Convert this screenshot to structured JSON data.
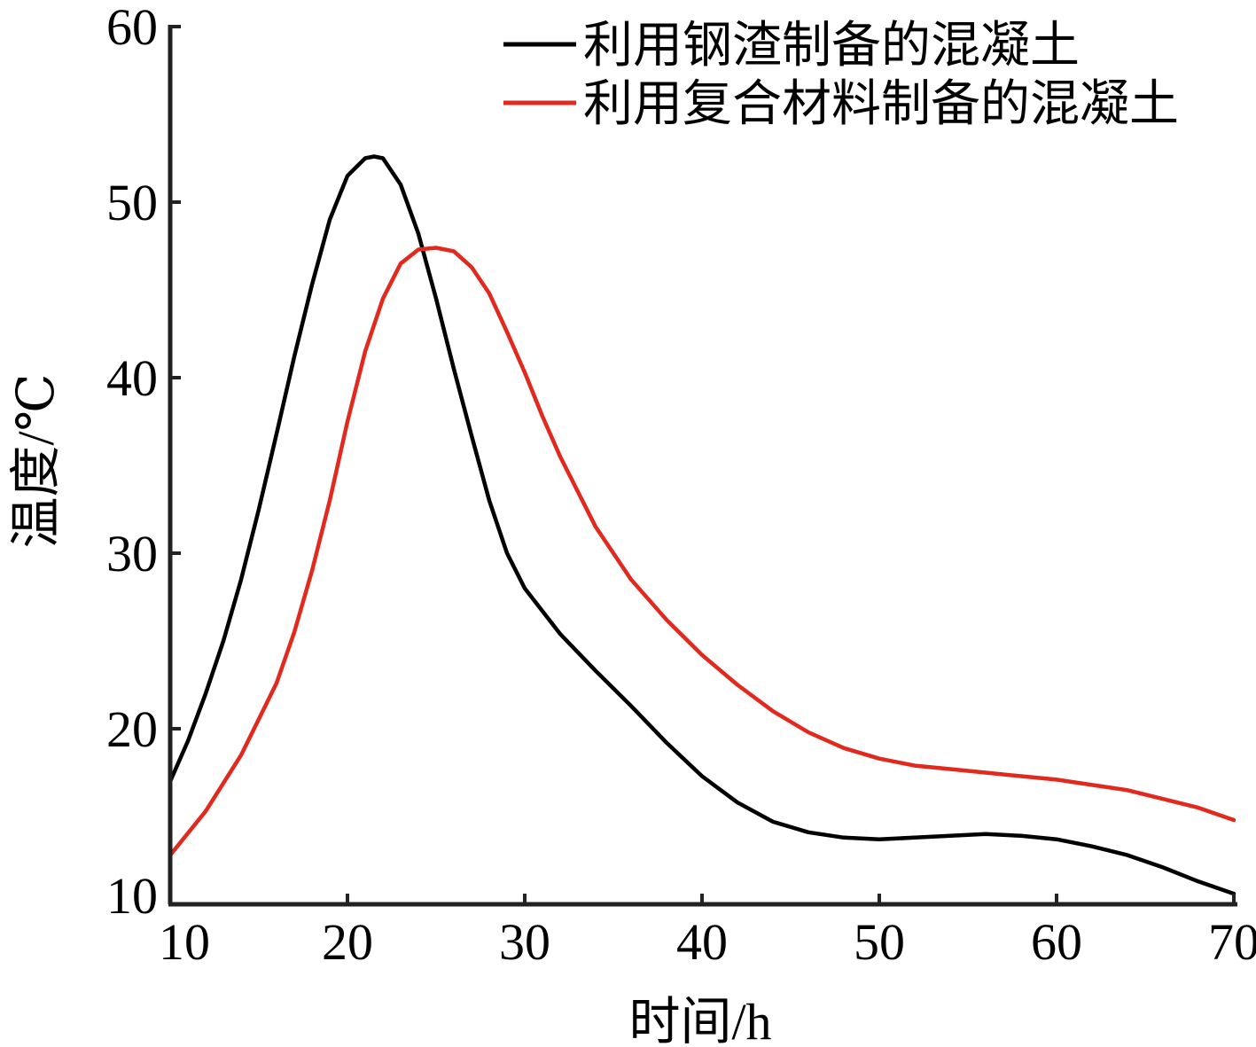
{
  "chart_data": {
    "type": "line",
    "title": "",
    "xlabel": "时间/h",
    "ylabel": "温度/℃",
    "xlim": [
      10,
      70
    ],
    "ylim": [
      10,
      60
    ],
    "xticks": [
      10,
      20,
      30,
      40,
      50,
      60,
      70
    ],
    "yticks": [
      10,
      20,
      30,
      40,
      50,
      60
    ],
    "grid": false,
    "legend_position": "top-right",
    "series": [
      {
        "name": "利用钢渣制备的混凝土",
        "color": "#000000",
        "x": [
          10,
          11,
          12,
          13,
          14,
          15,
          16,
          17,
          18,
          19,
          20,
          21,
          21.5,
          22,
          23,
          24,
          25,
          26,
          27,
          28,
          29,
          30,
          32,
          34,
          36,
          38,
          40,
          42,
          44,
          46,
          48,
          50,
          52,
          54,
          56,
          58,
          60,
          62,
          64,
          66,
          68,
          70
        ],
        "y": [
          17.0,
          19.3,
          22.0,
          25.0,
          28.5,
          32.5,
          36.8,
          41.2,
          45.3,
          49.0,
          51.5,
          52.5,
          52.6,
          52.5,
          51.0,
          48.2,
          44.5,
          40.5,
          36.7,
          33.0,
          30.0,
          28.0,
          25.4,
          23.3,
          21.3,
          19.2,
          17.3,
          15.8,
          14.7,
          14.1,
          13.8,
          13.7,
          13.8,
          13.9,
          14.0,
          13.9,
          13.7,
          13.3,
          12.8,
          12.1,
          11.3,
          10.6
        ]
      },
      {
        "name": "利用复合材料制备的混凝土",
        "color": "#e2291e",
        "x": [
          10,
          12,
          14,
          16,
          17,
          18,
          19,
          20,
          21,
          22,
          23,
          24,
          25,
          26,
          27,
          28,
          29,
          30,
          31,
          32,
          34,
          36,
          38,
          40,
          42,
          44,
          46,
          48,
          50,
          52,
          54,
          56,
          58,
          60,
          62,
          64,
          66,
          68,
          70
        ],
        "y": [
          12.8,
          15.3,
          18.5,
          22.6,
          25.5,
          29.0,
          33.0,
          37.5,
          41.5,
          44.5,
          46.5,
          47.3,
          47.4,
          47.2,
          46.3,
          44.8,
          42.6,
          40.3,
          37.8,
          35.5,
          31.5,
          28.5,
          26.2,
          24.2,
          22.5,
          21.0,
          19.8,
          18.9,
          18.3,
          17.9,
          17.7,
          17.5,
          17.3,
          17.1,
          16.8,
          16.5,
          16.0,
          15.5,
          14.8
        ]
      }
    ]
  }
}
